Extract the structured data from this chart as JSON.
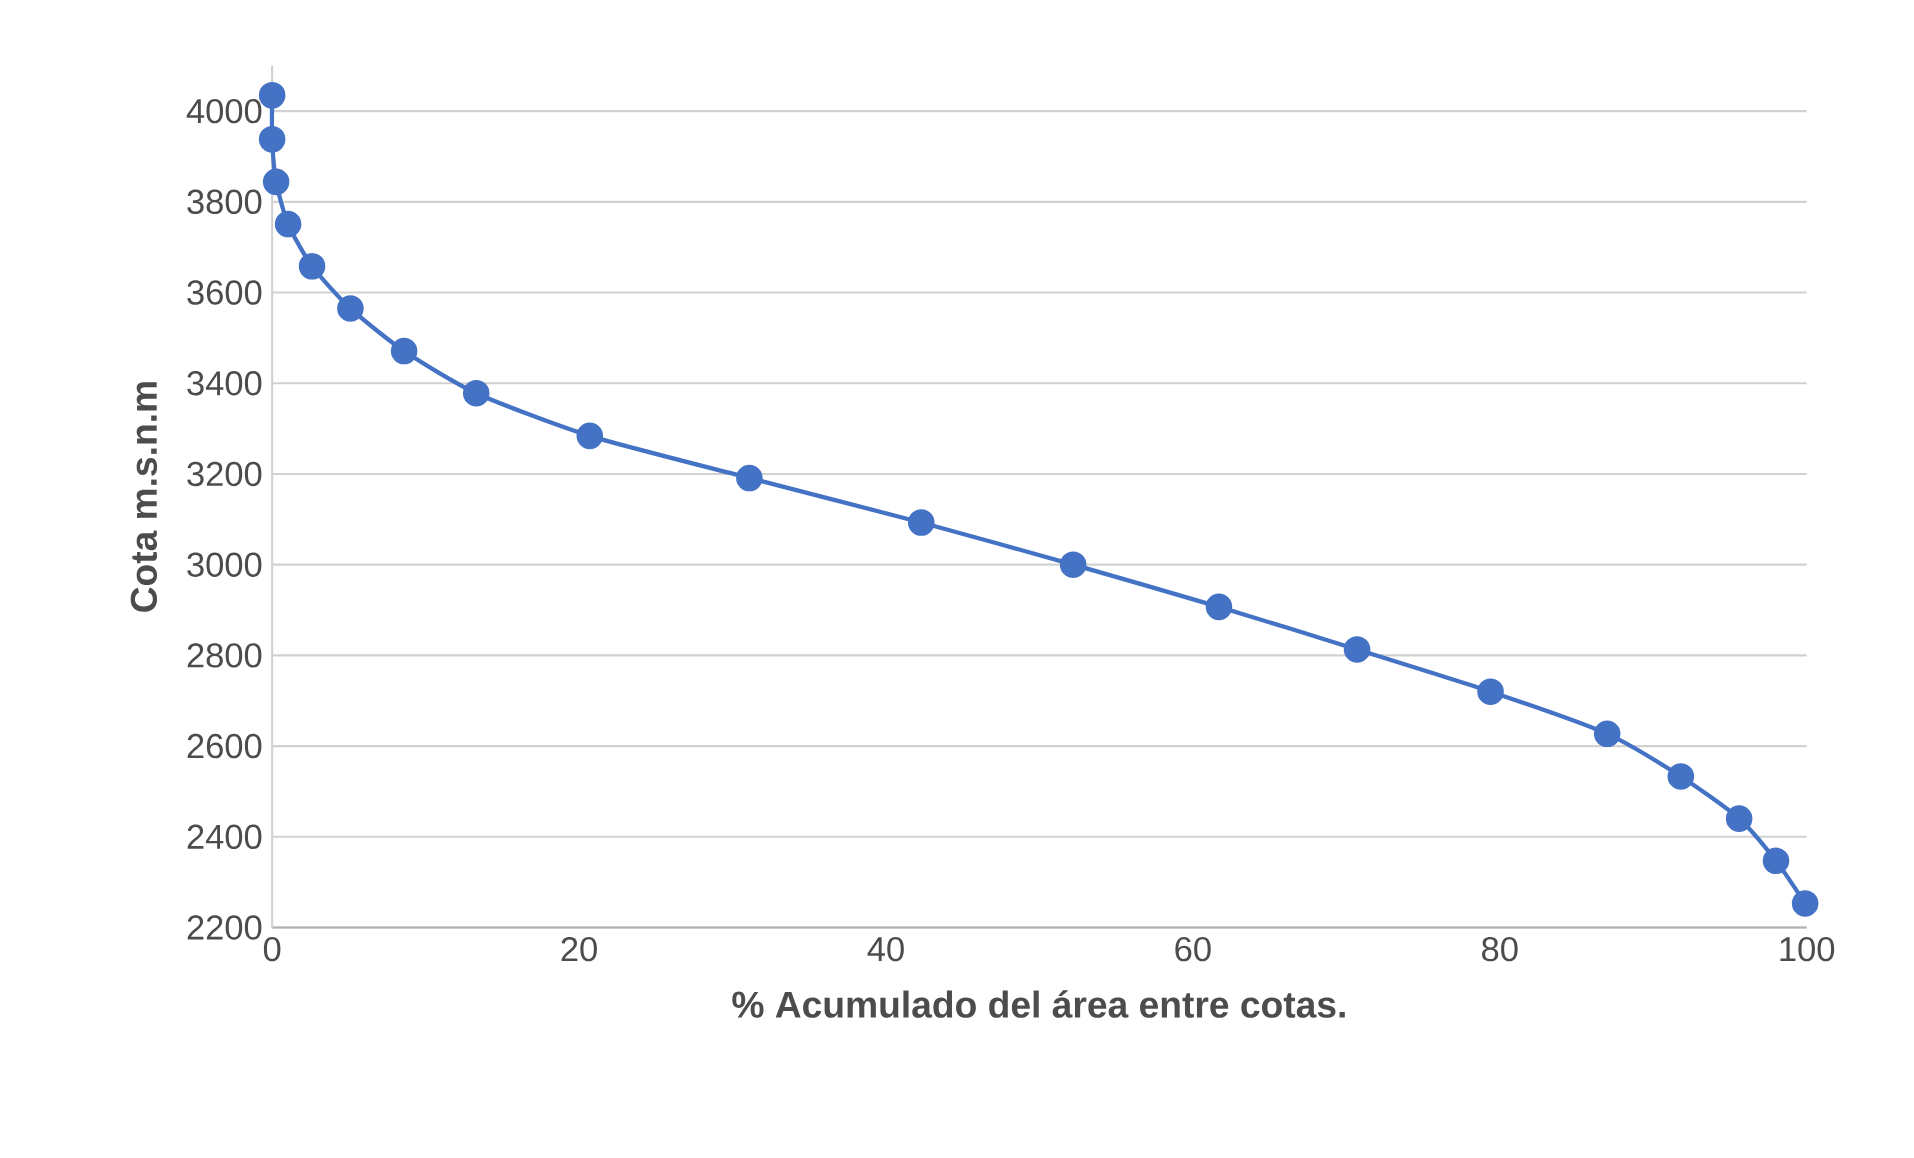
{
  "chart_data": {
    "type": "line",
    "xlabel": "% Acumulado del área entre cotas.",
    "ylabel": "Cota m.s.n.m",
    "series": [
      {
        "color": "#4472c4",
        "x": [
          0,
          0,
          0.26,
          1.04,
          2.6,
          5.1,
          8.6,
          13.3,
          20.7,
          31.1,
          42.3,
          52.2,
          61.7,
          70.7,
          79.4,
          87.0,
          91.8,
          95.6,
          98.0,
          99.9
        ],
        "values": [
          4035,
          3938,
          3844,
          3751,
          3658,
          3565,
          3471,
          3378,
          3284,
          3191,
          3093,
          3000,
          2907,
          2813,
          2720,
          2627,
          2533,
          2440,
          2347,
          2253
        ]
      }
    ],
    "xlim": [
      0,
      100
    ],
    "xticks": [
      0,
      20,
      40,
      60,
      80,
      100
    ],
    "ylim": [
      2200,
      4100
    ],
    "yticks": [
      2200,
      2400,
      2600,
      2800,
      3000,
      3200,
      3400,
      3600,
      3800,
      4000
    ],
    "grid": "y",
    "marker": "circle",
    "line_style": "solid"
  }
}
